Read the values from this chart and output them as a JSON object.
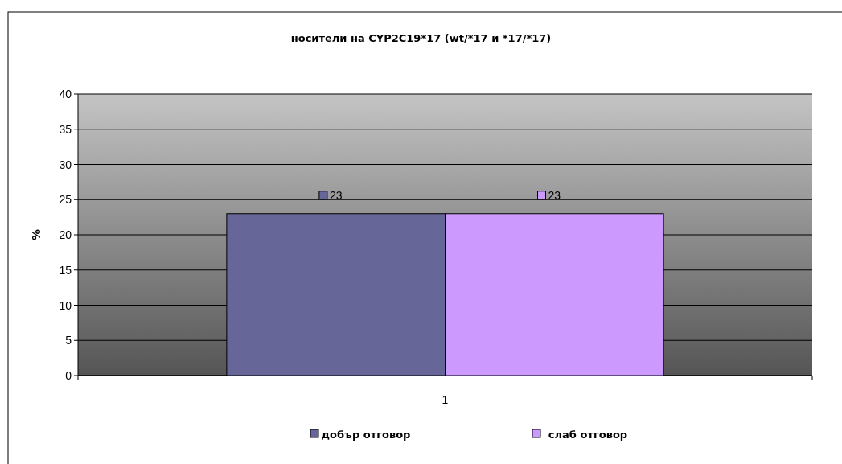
{
  "chart_data": {
    "type": "bar",
    "title": "носители на CYP2C19*17 (wt/*17 и *17/*17)",
    "ylabel": "%",
    "categories": [
      "1"
    ],
    "series": [
      {
        "name": "добър отговор",
        "color": "#666699",
        "values": [
          23
        ]
      },
      {
        "name": "слаб отговор",
        "color": "#cc99ff",
        "values": [
          23
        ]
      }
    ],
    "ylim": [
      0,
      40
    ],
    "yticks": [
      0,
      5,
      10,
      15,
      20,
      25,
      30,
      35,
      40
    ],
    "grid": "y",
    "legend": "bottom",
    "data_labels": true
  }
}
